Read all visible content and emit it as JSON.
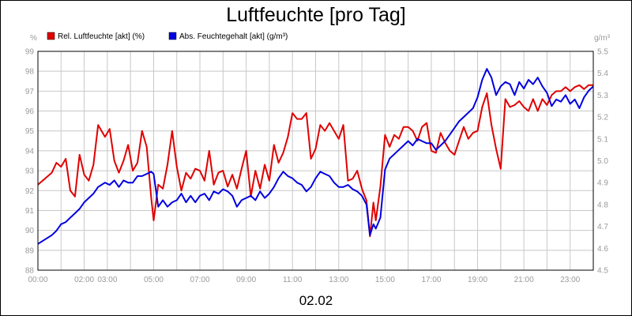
{
  "chart_data": {
    "type": "line",
    "title": "Luftfeuchte [pro Tag]",
    "date_label": "02.02",
    "left_unit": "%",
    "right_unit": "g/m³",
    "ylim_left": [
      88,
      99
    ],
    "ylim_right": [
      4.5,
      5.5
    ],
    "y_ticks_left": [
      "99",
      "98",
      "97",
      "96",
      "95",
      "94",
      "93",
      "92",
      "91",
      "90",
      "89",
      "88"
    ],
    "y_ticks_right": [
      "5.5",
      "5.4",
      "5.3",
      "5.2",
      "5.1",
      "5.0",
      "4.9",
      "4.8",
      "4.7",
      "4.6",
      "4.5"
    ],
    "x_tick_labels": [
      "00:00",
      "02:00",
      "03:00",
      "05:00",
      "07:00",
      "09:00",
      "11:00",
      "13:00",
      "15:00",
      "17:00",
      "19:00",
      "21:00",
      "23:00"
    ],
    "x_tick_hours": [
      0,
      2,
      3,
      5,
      7,
      9,
      11,
      13,
      15,
      17,
      19,
      21,
      23
    ],
    "x_range_hours": [
      0,
      24
    ],
    "grid": true,
    "series": [
      {
        "name": "Rel. Luftfeuchte [akt] (%)",
        "color": "#e00000",
        "axis": "left",
        "x": [
          0,
          0.3,
          0.6,
          0.8,
          1.0,
          1.2,
          1.4,
          1.6,
          1.8,
          2.0,
          2.2,
          2.4,
          2.6,
          2.9,
          3.1,
          3.3,
          3.5,
          3.7,
          3.9,
          4.1,
          4.3,
          4.5,
          4.7,
          4.9,
          5.0,
          5.2,
          5.4,
          5.6,
          5.8,
          6.0,
          6.2,
          6.4,
          6.6,
          6.8,
          7.0,
          7.2,
          7.4,
          7.6,
          7.8,
          8.0,
          8.2,
          8.4,
          8.6,
          8.8,
          9.0,
          9.2,
          9.4,
          9.6,
          9.8,
          10.0,
          10.2,
          10.4,
          10.6,
          10.8,
          11.0,
          11.2,
          11.4,
          11.6,
          11.8,
          12.0,
          12.2,
          12.4,
          12.6,
          12.8,
          13.0,
          13.2,
          13.4,
          13.6,
          13.8,
          14.0,
          14.2,
          14.35,
          14.5,
          14.6,
          14.8,
          15.0,
          15.2,
          15.4,
          15.6,
          15.8,
          16.0,
          16.2,
          16.4,
          16.6,
          16.8,
          17.0,
          17.2,
          17.4,
          17.6,
          17.8,
          18.0,
          18.2,
          18.4,
          18.6,
          18.8,
          19.0,
          19.2,
          19.4,
          19.6,
          19.8,
          20.0,
          20.2,
          20.4,
          20.6,
          20.8,
          21.0,
          21.2,
          21.4,
          21.6,
          21.8,
          22.0,
          22.2,
          22.4,
          22.6,
          22.8,
          23.0,
          23.2,
          23.4,
          23.6,
          23.8,
          24.0
        ],
        "values": [
          92.3,
          92.6,
          92.9,
          93.4,
          93.2,
          93.6,
          92.0,
          91.7,
          93.8,
          92.8,
          92.5,
          93.3,
          95.3,
          94.7,
          95.1,
          93.5,
          92.9,
          93.5,
          94.3,
          93.0,
          93.4,
          95.0,
          94.2,
          91.6,
          90.5,
          92.3,
          92.1,
          93.3,
          95.0,
          93.2,
          92.0,
          92.9,
          92.6,
          93.1,
          93.0,
          92.5,
          94.0,
          92.3,
          92.9,
          93.0,
          92.2,
          92.8,
          92.1,
          93.1,
          94.0,
          91.7,
          93.0,
          92.1,
          93.3,
          92.5,
          94.3,
          93.4,
          93.9,
          94.7,
          95.9,
          95.6,
          95.6,
          95.9,
          93.6,
          94.1,
          95.3,
          95.0,
          95.4,
          95.0,
          94.6,
          95.3,
          92.5,
          92.6,
          93.0,
          92.1,
          91.5,
          89.7,
          91.4,
          90.5,
          92.2,
          94.8,
          94.2,
          94.8,
          94.6,
          95.2,
          95.2,
          95.0,
          94.5,
          95.2,
          95.4,
          94.0,
          93.9,
          94.9,
          94.4,
          94.0,
          93.8,
          94.5,
          95.2,
          94.6,
          94.9,
          95.0,
          96.2,
          96.9,
          95.3,
          94.1,
          93.1,
          96.6,
          96.2,
          96.3,
          96.5,
          96.2,
          96.0,
          96.6,
          96.0,
          96.6,
          96.3,
          96.8,
          97.0,
          97.0,
          97.2,
          97.0,
          97.2,
          97.3,
          97.1,
          97.3,
          97.3
        ]
      },
      {
        "name": "Abs. Feuchtegehalt [akt] (g/m³)",
        "color": "#0000e0",
        "axis": "right",
        "x": [
          0,
          0.3,
          0.6,
          0.8,
          1.0,
          1.2,
          1.4,
          1.6,
          1.8,
          2.0,
          2.2,
          2.4,
          2.6,
          2.9,
          3.1,
          3.3,
          3.5,
          3.7,
          3.9,
          4.1,
          4.3,
          4.5,
          4.7,
          4.9,
          5.0,
          5.2,
          5.4,
          5.6,
          5.8,
          6.0,
          6.2,
          6.4,
          6.6,
          6.8,
          7.0,
          7.2,
          7.4,
          7.6,
          7.8,
          8.0,
          8.2,
          8.4,
          8.6,
          8.8,
          9.0,
          9.2,
          9.4,
          9.6,
          9.8,
          10.0,
          10.2,
          10.4,
          10.6,
          10.8,
          11.0,
          11.2,
          11.4,
          11.6,
          11.8,
          12.0,
          12.2,
          12.4,
          12.6,
          12.8,
          13.0,
          13.2,
          13.4,
          13.6,
          13.8,
          14.0,
          14.2,
          14.35,
          14.5,
          14.6,
          14.8,
          15.0,
          15.2,
          15.4,
          15.6,
          15.8,
          16.0,
          16.2,
          16.4,
          16.6,
          16.8,
          17.0,
          17.2,
          17.4,
          17.6,
          17.8,
          18.0,
          18.2,
          18.4,
          18.6,
          18.8,
          19.0,
          19.2,
          19.4,
          19.6,
          19.8,
          20.0,
          20.2,
          20.4,
          20.6,
          20.8,
          21.0,
          21.2,
          21.4,
          21.6,
          21.8,
          22.0,
          22.2,
          22.4,
          22.6,
          22.8,
          23.0,
          23.2,
          23.4,
          23.6,
          23.8,
          24.0
        ],
        "values": [
          4.62,
          4.64,
          4.66,
          4.68,
          4.71,
          4.72,
          4.74,
          4.76,
          4.78,
          4.81,
          4.83,
          4.85,
          4.88,
          4.9,
          4.89,
          4.91,
          4.88,
          4.91,
          4.9,
          4.9,
          4.93,
          4.93,
          4.94,
          4.95,
          4.94,
          4.79,
          4.82,
          4.79,
          4.81,
          4.82,
          4.85,
          4.81,
          4.84,
          4.81,
          4.84,
          4.85,
          4.82,
          4.86,
          4.85,
          4.87,
          4.86,
          4.84,
          4.79,
          4.82,
          4.83,
          4.84,
          4.82,
          4.86,
          4.83,
          4.85,
          4.88,
          4.92,
          4.95,
          4.93,
          4.92,
          4.9,
          4.89,
          4.86,
          4.88,
          4.92,
          4.95,
          4.94,
          4.93,
          4.9,
          4.88,
          4.88,
          4.89,
          4.87,
          4.86,
          4.84,
          4.8,
          4.66,
          4.71,
          4.69,
          4.74,
          4.96,
          5.01,
          5.03,
          5.05,
          5.07,
          5.09,
          5.07,
          5.1,
          5.09,
          5.08,
          5.08,
          5.05,
          5.07,
          5.09,
          5.12,
          5.15,
          5.18,
          5.2,
          5.22,
          5.24,
          5.29,
          5.37,
          5.42,
          5.38,
          5.3,
          5.34,
          5.36,
          5.35,
          5.3,
          5.36,
          5.33,
          5.37,
          5.35,
          5.38,
          5.34,
          5.31,
          5.25,
          5.28,
          5.27,
          5.3,
          5.26,
          5.28,
          5.24,
          5.29,
          5.32,
          5.34
        ]
      }
    ]
  }
}
